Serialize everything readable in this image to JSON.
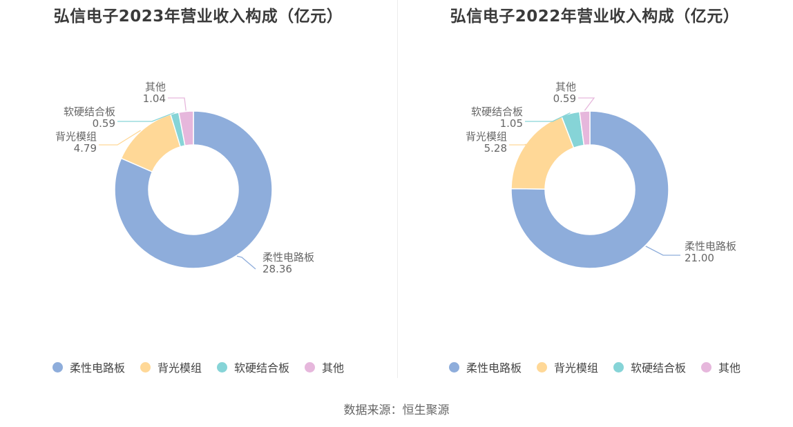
{
  "colors": [
    "#8eaddb",
    "#ffd897",
    "#86d4d7",
    "#e6b7dc"
  ],
  "chart_data": [
    {
      "type": "pie",
      "title": "弘信电子2023年营业收入构成（亿元）",
      "categories": [
        "柔性电路板",
        "背光模组",
        "软硬结合板",
        "其他"
      ],
      "values": [
        "28.36",
        "4.79",
        "0.59",
        "1.04"
      ],
      "legend": "bottom"
    },
    {
      "type": "pie",
      "title": "弘信电子2022年营业收入构成（亿元）",
      "categories": [
        "柔性电路板",
        "背光模组",
        "软硬结合板",
        "其他"
      ],
      "values": [
        "21.00",
        "5.28",
        "1.05",
        "0.59"
      ],
      "legend": "bottom"
    }
  ],
  "source": "数据来源：恒生聚源"
}
